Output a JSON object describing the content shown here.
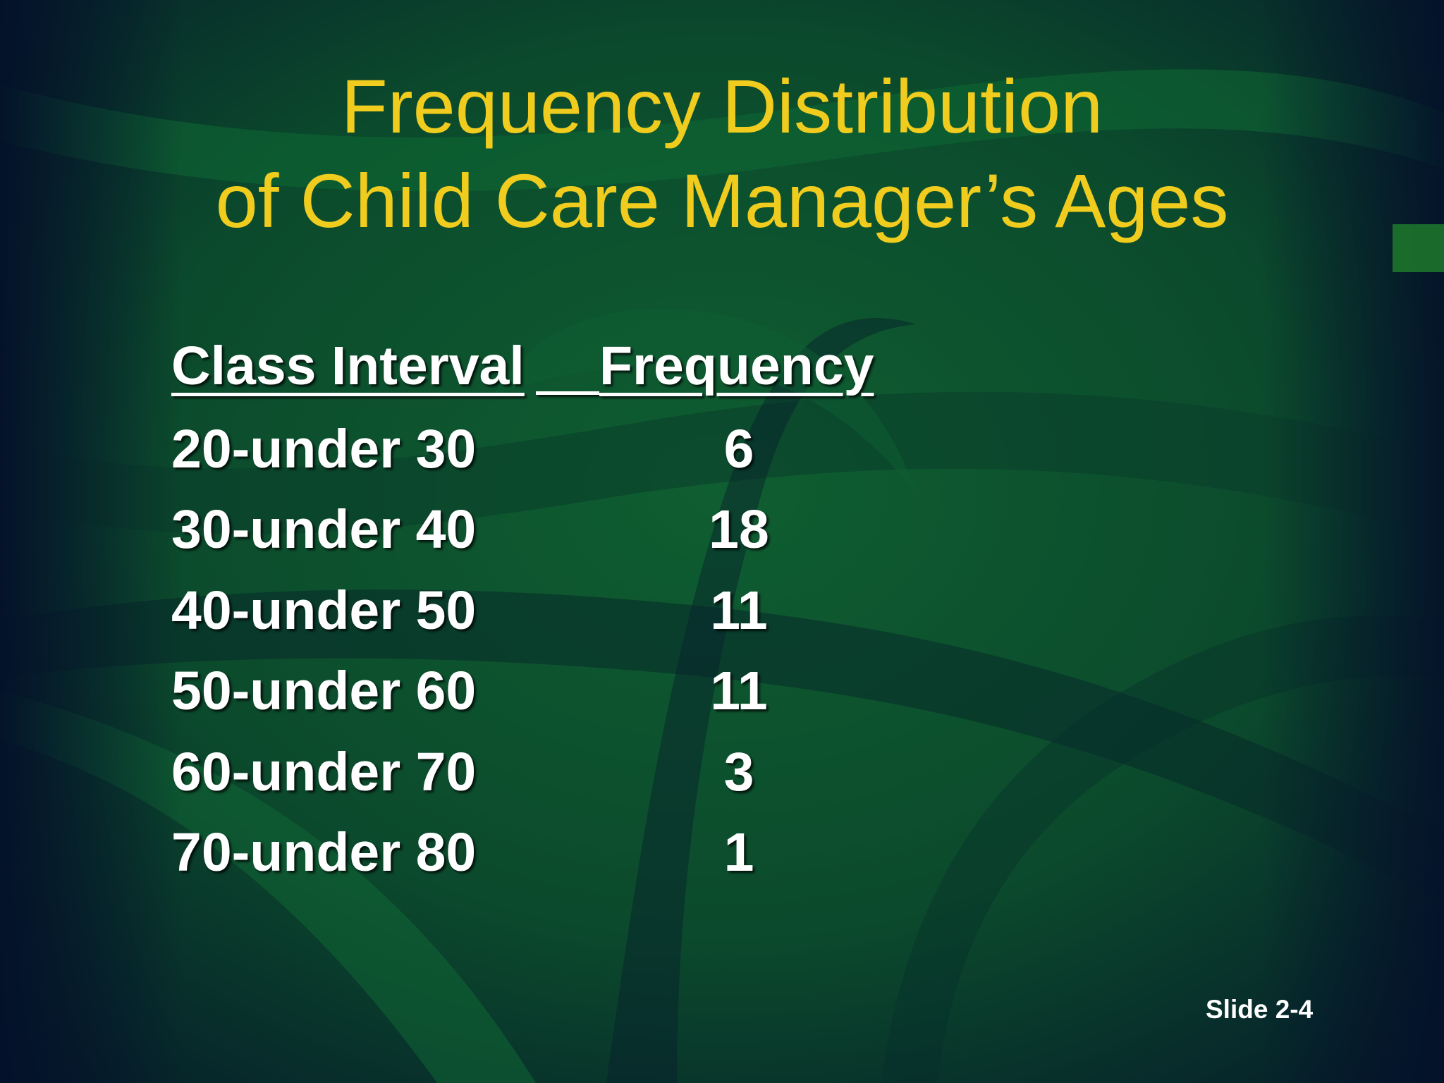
{
  "slide": {
    "title_line_1": "Frequency Distribution",
    "title_line_2": "of Child Care Manager’s Ages",
    "slide_number": "Slide 2-4"
  },
  "table": {
    "headers": [
      "Class Interval",
      "Frequency"
    ],
    "rows": [
      {
        "interval": "20-under 30",
        "frequency": "6"
      },
      {
        "interval": "30-under 40",
        "frequency": "18"
      },
      {
        "interval": "40-under 50",
        "frequency": "11"
      },
      {
        "interval": "50-under 60",
        "frequency": "11"
      },
      {
        "interval": "60-under 70",
        "frequency": "3"
      },
      {
        "interval": "70-under 80",
        "frequency": "1"
      }
    ]
  },
  "theme": {
    "title_color": "#f0cc1e",
    "text_color": "#ffffff",
    "background_dark": "#06152a",
    "background_green": "#0d5a30"
  }
}
